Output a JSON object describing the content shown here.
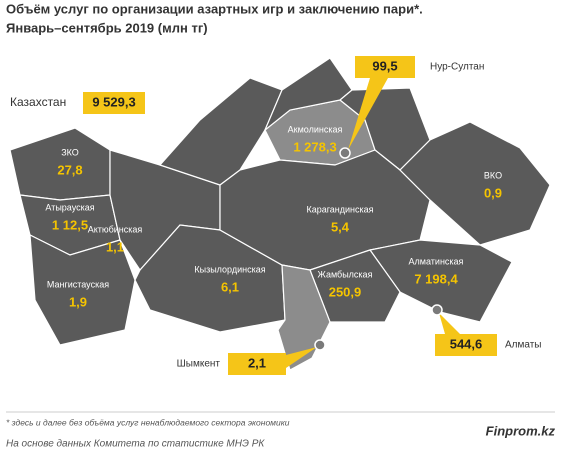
{
  "title": "Объём услуг по организации азартных игр и заключению пари*.",
  "subtitle": "Январь–сентябрь 2019  (млн тг)",
  "total": {
    "label": "Казахстан",
    "value": "9 529,3"
  },
  "regions": [
    {
      "name": "ЗКО",
      "value": "27,8"
    },
    {
      "name": "Атырауская",
      "value": "1 12,5"
    },
    {
      "name": "Актюбинская",
      "value": "1,1"
    },
    {
      "name": "Мангистауская",
      "value": "1,9"
    },
    {
      "name": "Кызылординская",
      "value": "6,1"
    },
    {
      "name": "Акмолинская",
      "value": "1 278,3"
    },
    {
      "name": "Карагандинская",
      "value": "5,4"
    },
    {
      "name": "ВКО",
      "value": "0,9"
    },
    {
      "name": "Жамбылская",
      "value": "250,9"
    },
    {
      "name": "Алматинская",
      "value": "7 198,4"
    }
  ],
  "cities": [
    {
      "name": "Нур-Султан",
      "value": "99,5"
    },
    {
      "name": "Алматы",
      "value": "544,6"
    },
    {
      "name": "Шымкент",
      "value": "2,1"
    }
  ],
  "footnote": "* здесь и далее без объёма услуг ненаблюдаемого сектора экономики",
  "source": "На основе данных Комитета по статистике МНЭ РК",
  "brand": "Finprom.kz"
}
